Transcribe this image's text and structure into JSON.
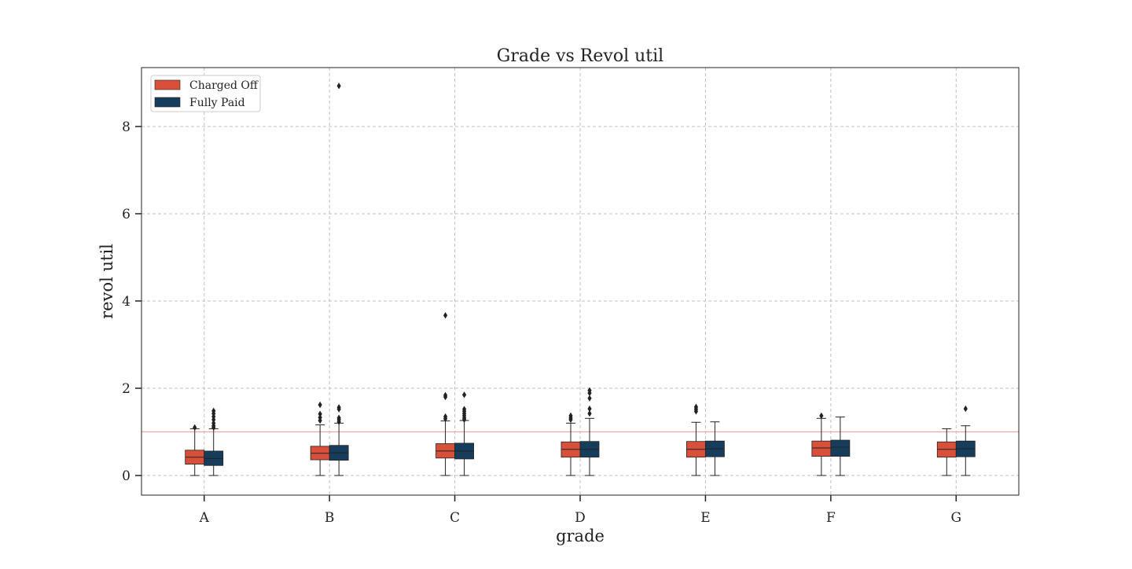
{
  "chart_data": {
    "type": "box",
    "title": "Grade vs Revol util",
    "xlabel": "grade",
    "ylabel": "revol util",
    "categories": [
      "A",
      "B",
      "C",
      "D",
      "E",
      "F",
      "G"
    ],
    "ylim": [
      -0.45,
      9.35
    ],
    "yticks": [
      0,
      2,
      4,
      6,
      8
    ],
    "reference_line": 1.0,
    "grid": true,
    "legend_position": "top-left",
    "colors": {
      "Charged Off": "#d9503a",
      "Fully Paid": "#173d5c",
      "reference_line": "#f2a3a3",
      "grid": "#c0c0c0"
    },
    "series": [
      {
        "name": "Charged Off",
        "boxes": [
          {
            "whislo": 0.0,
            "q1": 0.26,
            "med": 0.42,
            "q3": 0.58,
            "whishi": 1.07,
            "fliers": [
              1.1
            ]
          },
          {
            "whislo": 0.0,
            "q1": 0.36,
            "med": 0.51,
            "q3": 0.67,
            "whishi": 1.16,
            "fliers": [
              1.26,
              1.33,
              1.41,
              1.62
            ]
          },
          {
            "whislo": 0.0,
            "q1": 0.4,
            "med": 0.56,
            "q3": 0.73,
            "whishi": 1.25,
            "fliers": [
              1.3,
              1.35,
              1.8,
              1.84,
              3.67
            ]
          },
          {
            "whislo": 0.0,
            "q1": 0.42,
            "med": 0.6,
            "q3": 0.77,
            "whishi": 1.2,
            "fliers": [
              1.28,
              1.32,
              1.37
            ]
          },
          {
            "whislo": 0.0,
            "q1": 0.42,
            "med": 0.6,
            "q3": 0.78,
            "whishi": 1.22,
            "fliers": [
              1.47,
              1.52,
              1.57
            ]
          },
          {
            "whislo": 0.0,
            "q1": 0.44,
            "med": 0.63,
            "q3": 0.79,
            "whishi": 1.31,
            "fliers": [
              1.37
            ]
          },
          {
            "whislo": 0.0,
            "q1": 0.42,
            "med": 0.6,
            "q3": 0.77,
            "whishi": 1.07,
            "fliers": []
          }
        ]
      },
      {
        "name": "Fully Paid",
        "boxes": [
          {
            "whislo": 0.0,
            "q1": 0.23,
            "med": 0.39,
            "q3": 0.56,
            "whishi": 1.07,
            "fliers": [
              1.1,
              1.14,
              1.2,
              1.28,
              1.35,
              1.42,
              1.48
            ]
          },
          {
            "whislo": 0.0,
            "q1": 0.35,
            "med": 0.52,
            "q3": 0.69,
            "whishi": 1.2,
            "fliers": [
              1.23,
              1.28,
              1.32,
              1.52,
              1.56,
              8.93
            ]
          },
          {
            "whislo": 0.0,
            "q1": 0.38,
            "med": 0.56,
            "q3": 0.74,
            "whishi": 1.26,
            "fliers": [
              1.28,
              1.32,
              1.37,
              1.42,
              1.47,
              1.52,
              1.85
            ]
          },
          {
            "whislo": 0.0,
            "q1": 0.42,
            "med": 0.6,
            "q3": 0.78,
            "whishi": 1.31,
            "fliers": [
              1.42,
              1.53,
              1.77,
              1.89,
              1.95
            ]
          },
          {
            "whislo": 0.0,
            "q1": 0.43,
            "med": 0.61,
            "q3": 0.79,
            "whishi": 1.23,
            "fliers": []
          },
          {
            "whislo": 0.0,
            "q1": 0.44,
            "med": 0.65,
            "q3": 0.81,
            "whishi": 1.34,
            "fliers": []
          },
          {
            "whislo": 0.0,
            "q1": 0.43,
            "med": 0.61,
            "q3": 0.79,
            "whishi": 1.14,
            "fliers": [
              1.53
            ]
          }
        ]
      }
    ]
  }
}
